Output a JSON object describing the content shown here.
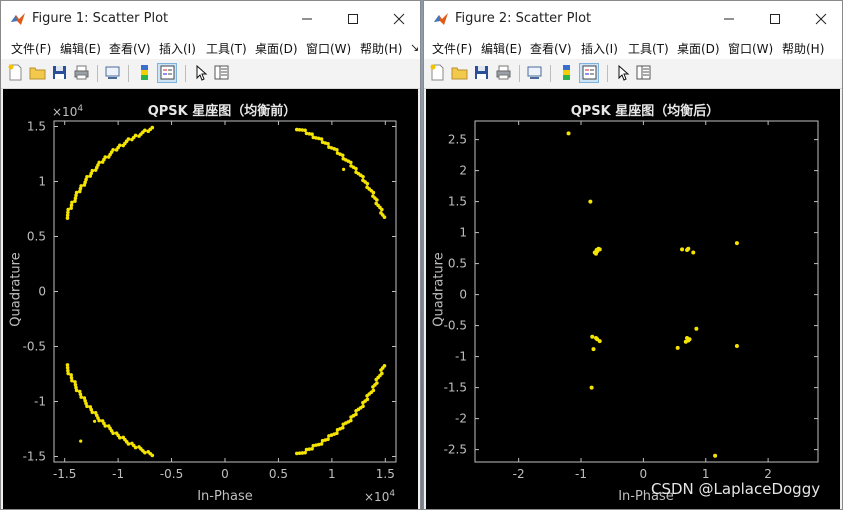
{
  "windows": [
    {
      "title": "Figure 1: Scatter Plot",
      "menu": [
        "文件(F)",
        "编辑(E)",
        "查看(V)",
        "插入(I)",
        "工具(T)",
        "桌面(D)",
        "窗口(W)",
        "帮助(H)"
      ],
      "plot_title": "QPSK 星座图（均衡前）",
      "xlabel": "In-Phase",
      "ylabel": "Quadrature",
      "x_exponent": "4",
      "y_exponent": "4"
    },
    {
      "title": "Figure 2: Scatter Plot",
      "menu": [
        "文件(F)",
        "编辑(E)",
        "查看(V)",
        "插入(I)",
        "工具(T)",
        "桌面(D)",
        "窗口(W)",
        "帮助(H)"
      ],
      "plot_title": "QPSK 星座图（均衡后）",
      "xlabel": "In-Phase",
      "ylabel": "Quadrature"
    }
  ],
  "watermark": "CSDN @LaplaceDoggy",
  "colors": {
    "marker": "#f5e400",
    "axes_bg": "#000000",
    "axis": "#bfbfbf",
    "titlebar": "#ffffff"
  },
  "chart_data": [
    {
      "type": "scatter",
      "title": "QPSK 星座图（均衡前）",
      "xlabel": "In-Phase",
      "ylabel": "Quadrature",
      "scale_note": "×10^4",
      "xlim": [
        -1.6,
        1.6
      ],
      "ylim": [
        -1.55,
        1.55
      ],
      "xticks": [
        -1.5,
        -1,
        -0.5,
        0,
        0.5,
        1,
        1.5
      ],
      "yticks": [
        -1.5,
        -1,
        -0.5,
        0,
        0.5,
        1,
        1.5
      ],
      "arcs": [
        {
          "quadrant": "upper-left",
          "from": [
            -1.48,
            0.67
          ],
          "to": [
            -0.68,
            1.49
          ]
        },
        {
          "quadrant": "upper-right",
          "from": [
            0.68,
            1.49
          ],
          "to": [
            1.48,
            0.67
          ]
        },
        {
          "quadrant": "lower-left",
          "from": [
            -1.48,
            -0.67
          ],
          "to": [
            -0.68,
            -1.49
          ]
        },
        {
          "quadrant": "lower-right",
          "from": [
            0.68,
            -1.49
          ],
          "to": [
            1.48,
            -0.67
          ]
        }
      ],
      "outliers": [
        [
          -1.35,
          -1.36
        ],
        [
          1.11,
          1.11
        ],
        [
          -1.22,
          -1.18
        ]
      ],
      "grid": false
    },
    {
      "type": "scatter",
      "title": "QPSK 星座图（均衡后）",
      "xlabel": "In-Phase",
      "ylabel": "Quadrature",
      "xlim": [
        -2.7,
        2.8
      ],
      "ylim": [
        -2.7,
        2.8
      ],
      "xticks": [
        -2,
        -1,
        0,
        1,
        2
      ],
      "yticks": [
        -2.5,
        -2,
        -1.5,
        -1,
        -0.5,
        0,
        0.5,
        1,
        1.5,
        2,
        2.5
      ],
      "points": [
        [
          -1.2,
          2.6
        ],
        [
          -0.85,
          1.5
        ],
        [
          -0.75,
          0.72
        ],
        [
          -0.72,
          0.74
        ],
        [
          -0.78,
          0.68
        ],
        [
          -0.74,
          0.7
        ],
        [
          -0.7,
          0.73
        ],
        [
          -0.76,
          0.66
        ],
        [
          0.62,
          0.73
        ],
        [
          0.7,
          0.72
        ],
        [
          0.72,
          0.74
        ],
        [
          0.8,
          0.68
        ],
        [
          1.5,
          0.83
        ],
        [
          -0.82,
          -0.68
        ],
        [
          -0.76,
          -0.7
        ],
        [
          -0.74,
          -0.72
        ],
        [
          -0.7,
          -0.75
        ],
        [
          -0.8,
          -0.88
        ],
        [
          0.7,
          -0.7
        ],
        [
          0.72,
          -0.74
        ],
        [
          0.68,
          -0.76
        ],
        [
          0.74,
          -0.72
        ],
        [
          0.85,
          -0.55
        ],
        [
          0.55,
          -0.86
        ],
        [
          1.5,
          -0.83
        ],
        [
          -0.83,
          -1.5
        ],
        [
          1.15,
          -2.6
        ]
      ],
      "grid": false
    }
  ]
}
